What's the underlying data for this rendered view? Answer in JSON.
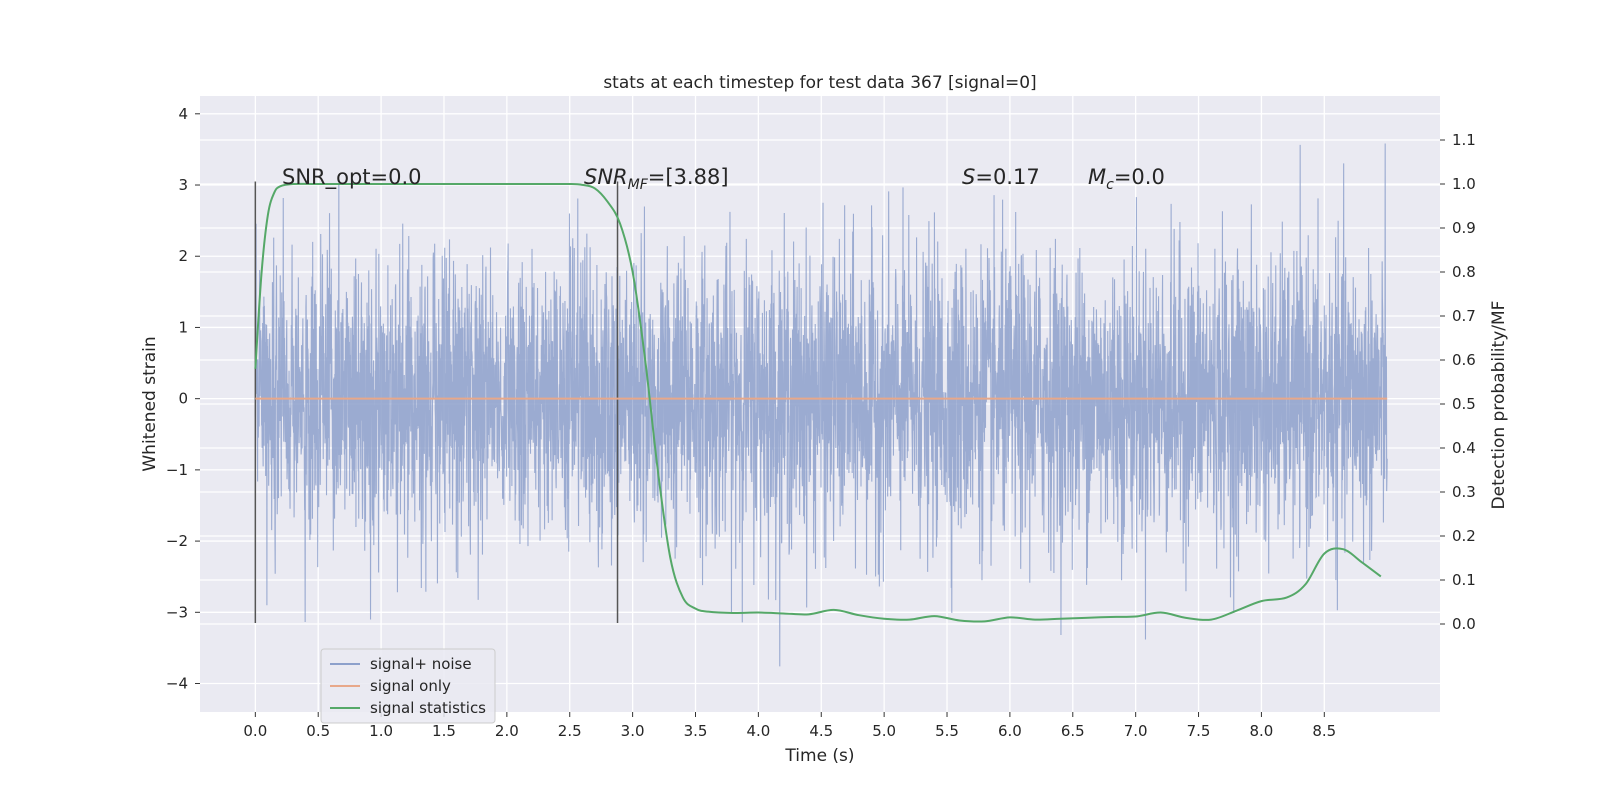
{
  "chart_data": {
    "type": "line",
    "title": "stats at each timestep for test data 367 [signal=0]",
    "xlabel": "Time (s)",
    "ylabel": "Whitened strain",
    "ylabel_right": "Detection probability/MF",
    "xlim": [
      -0.44,
      9.42
    ],
    "ylim": [
      -4.4,
      4.25
    ],
    "ylim_right": [
      -0.2,
      1.2
    ],
    "xticks": [
      0.0,
      0.5,
      1.0,
      1.5,
      2.0,
      2.5,
      3.0,
      3.5,
      4.0,
      4.5,
      5.0,
      5.5,
      6.0,
      6.5,
      7.0,
      7.5,
      8.0,
      8.5
    ],
    "xtick_labels": [
      "0.0",
      "0.5",
      "1.0",
      "1.5",
      "2.0",
      "2.5",
      "3.0",
      "3.5",
      "4.0",
      "4.5",
      "5.0",
      "5.5",
      "6.0",
      "6.5",
      "7.0",
      "7.5",
      "8.0",
      "8.5"
    ],
    "yticks": [
      -4,
      -3,
      -2,
      -1,
      0,
      1,
      2,
      3,
      4
    ],
    "ytick_labels": [
      "−4",
      "−3",
      "−2",
      "−1",
      "0",
      "1",
      "2",
      "3",
      "4"
    ],
    "yticks_right": [
      0.0,
      0.1,
      0.2,
      0.3,
      0.4,
      0.5,
      0.6,
      0.7,
      0.8,
      0.9,
      1.0,
      1.1
    ],
    "ytick_labels_right": [
      "0.0",
      "0.1",
      "0.2",
      "0.3",
      "0.4",
      "0.5",
      "0.6",
      "0.7",
      "0.8",
      "0.9",
      "1.0",
      "1.1"
    ],
    "grid": true,
    "legend_position": "lower-left",
    "series": [
      {
        "name": "signal+ noise",
        "color": "#8da0cb",
        "axis": "left",
        "x_range": [
          0.0,
          9.0
        ],
        "noise_std": 1.0,
        "y_range_observed": [
          -4.0,
          3.9
        ]
      },
      {
        "name": "signal only",
        "color": "#e8a88a",
        "axis": "left",
        "x": [
          0.0,
          9.0
        ],
        "y": [
          0.0,
          0.0
        ]
      },
      {
        "name": "signal statistics",
        "color": "#55a868",
        "axis": "right",
        "x": [
          0.0,
          0.05,
          0.1,
          0.15,
          0.2,
          0.3,
          0.5,
          1.0,
          1.5,
          2.0,
          2.3,
          2.5,
          2.6,
          2.7,
          2.8,
          2.9,
          3.0,
          3.1,
          3.2,
          3.3,
          3.4,
          3.5,
          3.6,
          3.8,
          4.0,
          4.2,
          4.4,
          4.6,
          4.8,
          5.0,
          5.2,
          5.4,
          5.6,
          5.8,
          6.0,
          6.2,
          6.4,
          6.6,
          6.8,
          7.0,
          7.2,
          7.4,
          7.6,
          7.8,
          8.0,
          8.2,
          8.35,
          8.5,
          8.65,
          8.8,
          8.95
        ],
        "y": [
          0.58,
          0.8,
          0.93,
          0.98,
          0.995,
          1.0,
          1.0,
          1.0,
          1.0,
          1.0,
          1.0,
          1.0,
          0.998,
          0.99,
          0.96,
          0.91,
          0.8,
          0.6,
          0.35,
          0.15,
          0.06,
          0.035,
          0.028,
          0.025,
          0.026,
          0.024,
          0.022,
          0.032,
          0.02,
          0.012,
          0.01,
          0.018,
          0.008,
          0.006,
          0.015,
          0.01,
          0.012,
          0.014,
          0.016,
          0.017,
          0.026,
          0.014,
          0.01,
          0.03,
          0.052,
          0.06,
          0.09,
          0.16,
          0.17,
          0.14,
          0.108
        ]
      }
    ],
    "vlines": [
      {
        "x": 0.0,
        "color": "#555555",
        "y": [
          -3.15,
          3.05
        ]
      },
      {
        "x": 2.88,
        "color": "#555555",
        "y": [
          -3.15,
          3.05
        ]
      }
    ],
    "annotations": {
      "snr_opt": "SNR_opt=0.0",
      "snr_mf_prefix": "SNR",
      "snr_mf_sub": "MF",
      "snr_mf_value": "=[3.88]",
      "s_prefix": "S",
      "s_value": "=0.17",
      "mc_prefix": "M",
      "mc_sub": "c",
      "mc_value": "=0.0"
    }
  }
}
